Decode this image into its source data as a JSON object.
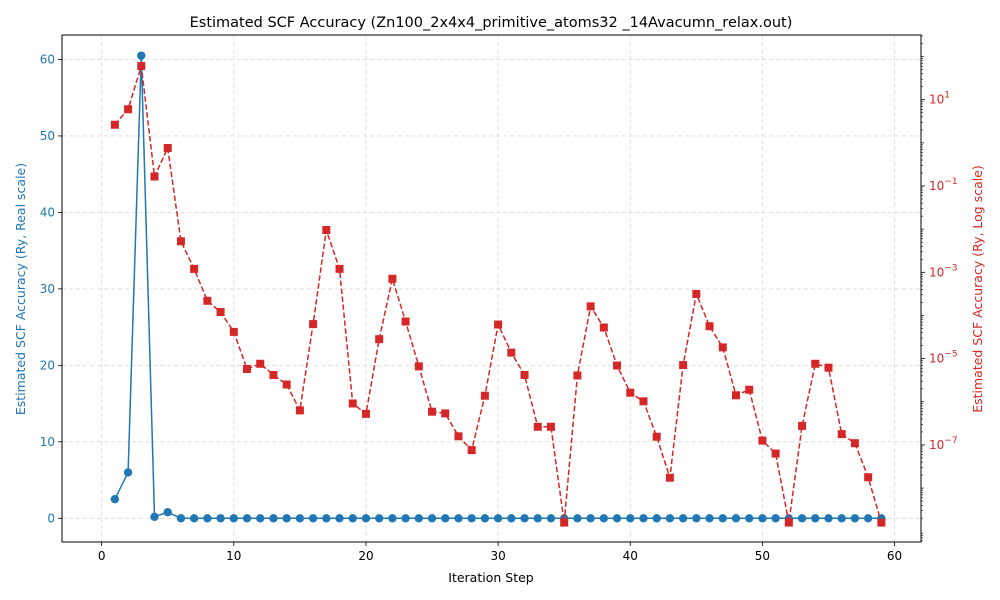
{
  "chart_data": {
    "type": "line",
    "title": "Estimated SCF Accuracy (Zn100_2x4x4_primitive_atoms32 _14Avacumn_relax.out)",
    "xlabel": "Iteration Step",
    "ylabel_left": "Estimated SCF Accuracy (Ry, Real scale)",
    "ylabel_right": "Estimated SCF Accuracy (Ry, Log scale)",
    "xlim": [
      -3,
      62
    ],
    "ylim_left": [
      -3.1,
      63.2
    ],
    "ylim_right_log10": [
      -9.25,
      2.5
    ],
    "x_ticks": [
      0,
      10,
      20,
      30,
      40,
      50,
      60
    ],
    "x_tick_labels": [
      "0",
      "10",
      "20",
      "30",
      "40",
      "50",
      "60"
    ],
    "y_left_ticks": [
      0,
      10,
      20,
      30,
      40,
      50,
      60
    ],
    "y_left_tick_labels": [
      "0",
      "10",
      "20",
      "30",
      "40",
      "50",
      "60"
    ],
    "y_right_ticks_log10": [
      1,
      -1,
      -3,
      -5,
      -7
    ],
    "y_right_tick_bases": [
      "10",
      "10",
      "10",
      "10",
      "10"
    ],
    "y_right_tick_exponents": [
      "1",
      "−1",
      "−3",
      "−5",
      "−7"
    ],
    "grid": true,
    "colors": {
      "left": "#1f77b4",
      "right": "#d62728",
      "grid": "#d9d9d9",
      "text": "#000000"
    },
    "x": [
      1,
      2,
      3,
      4,
      5,
      6,
      7,
      8,
      9,
      10,
      11,
      12,
      13,
      14,
      15,
      16,
      17,
      18,
      19,
      20,
      21,
      22,
      23,
      24,
      25,
      26,
      27,
      28,
      29,
      30,
      31,
      32,
      33,
      34,
      35,
      36,
      37,
      38,
      39,
      40,
      41,
      42,
      43,
      44,
      45,
      46,
      47,
      48,
      49,
      50,
      51,
      52,
      53,
      54,
      55,
      56,
      57,
      58,
      59
    ],
    "series": [
      {
        "axis": "left",
        "style": "solid-circle",
        "values": [
          2.5,
          6.0,
          60.5,
          0.2,
          0.8,
          0.0,
          0.0,
          0.0,
          0.0,
          0.0,
          0.0,
          0.0,
          0.0,
          0.0,
          0.0,
          0.0,
          0.0,
          0.0,
          0.0,
          0.0,
          0.0,
          0.0,
          0.0,
          0.0,
          0.0,
          0.0,
          0.0,
          0.0,
          0.0,
          0.0,
          0.0,
          0.0,
          0.0,
          0.0,
          0.0,
          0.0,
          0.0,
          0.0,
          0.0,
          0.0,
          0.0,
          0.0,
          0.0,
          0.0,
          0.0,
          0.0,
          0.0,
          0.0,
          0.0,
          0.0,
          0.0,
          0.0,
          0.0,
          0.0,
          0.0,
          0.0,
          0.0,
          0.0,
          0.0
        ]
      },
      {
        "axis": "right",
        "style": "dashed-square",
        "values_log10": [
          0.42,
          0.78,
          1.78,
          -0.78,
          -0.12,
          -2.28,
          -2.92,
          -3.66,
          -3.92,
          -4.38,
          -5.24,
          -5.12,
          -5.38,
          -5.6,
          -6.2,
          -4.2,
          -2.02,
          -2.92,
          -6.04,
          -6.28,
          -4.55,
          -3.15,
          -4.14,
          -5.18,
          -6.23,
          -6.27,
          -6.8,
          -7.12,
          -5.86,
          -4.21,
          -4.86,
          -5.38,
          -6.58,
          -6.58,
          -8.8,
          -5.39,
          -3.79,
          -4.28,
          -5.16,
          -5.79,
          -5.99,
          -6.81,
          -7.76,
          -5.15,
          -3.5,
          -4.25,
          -4.74,
          -5.85,
          -5.72,
          -6.9,
          -7.2,
          -8.8,
          -6.56,
          -5.12,
          -5.21,
          -6.75,
          -6.96,
          -7.75,
          -8.8
        ]
      }
    ]
  }
}
